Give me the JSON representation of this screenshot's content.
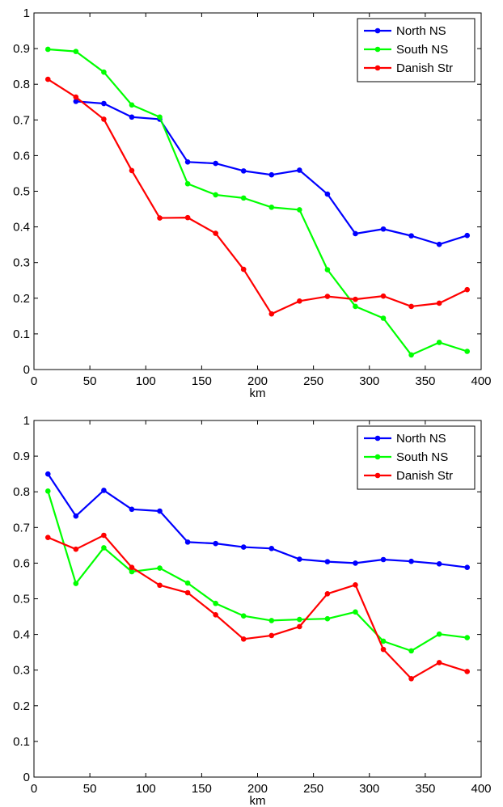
{
  "chart_data": [
    {
      "type": "line",
      "xlabel": "km",
      "ylabel": "",
      "xlim": [
        0,
        400
      ],
      "ylim": [
        0,
        1
      ],
      "xticks": [
        0,
        50,
        100,
        150,
        200,
        250,
        300,
        350,
        400
      ],
      "yticks": [
        0,
        0.1,
        0.2,
        0.3,
        0.4,
        0.5,
        0.6,
        0.7,
        0.8,
        0.9,
        1
      ],
      "ytick_labels": [
        "0",
        "0.1",
        "0.2",
        "0.3",
        "0.4",
        "0.5",
        "0.6",
        "0.7",
        "0.8",
        "0.9",
        "1"
      ],
      "grid": false,
      "legend_position": "top-right",
      "series": [
        {
          "name": "North NS",
          "color": "#0000ff",
          "x": [
            37.5,
            62.5,
            87.5,
            112.5,
            137.5,
            162.5,
            187.5,
            212.5,
            237.5,
            262.5,
            287.5,
            312.5,
            337.5,
            362.5,
            387.5
          ],
          "y": [
            0.752,
            0.746,
            0.708,
            0.702,
            0.582,
            0.578,
            0.557,
            0.546,
            0.559,
            0.492,
            0.381,
            0.394,
            0.375,
            0.351,
            0.376
          ]
        },
        {
          "name": "South NS",
          "color": "#00ff00",
          "x": [
            12.5,
            37.5,
            62.5,
            87.5,
            112.5,
            137.5,
            162.5,
            187.5,
            212.5,
            237.5,
            262.5,
            287.5,
            312.5,
            337.5,
            362.5,
            387.5
          ],
          "y": [
            0.898,
            0.892,
            0.834,
            0.742,
            0.708,
            0.521,
            0.49,
            0.481,
            0.455,
            0.448,
            0.28,
            0.177,
            0.144,
            0.041,
            0.076,
            0.051
          ]
        },
        {
          "name": "Danish Str",
          "color": "#ff0000",
          "x": [
            12.5,
            37.5,
            62.5,
            87.5,
            112.5,
            137.5,
            162.5,
            187.5,
            212.5,
            237.5,
            262.5,
            287.5,
            312.5,
            337.5,
            362.5,
            387.5
          ],
          "y": [
            0.814,
            0.764,
            0.702,
            0.558,
            0.425,
            0.426,
            0.382,
            0.281,
            0.156,
            0.192,
            0.205,
            0.197,
            0.206,
            0.177,
            0.186,
            0.224
          ]
        }
      ]
    },
    {
      "type": "line",
      "xlabel": "km",
      "ylabel": "",
      "xlim": [
        0,
        400
      ],
      "ylim": [
        0,
        1
      ],
      "xticks": [
        0,
        50,
        100,
        150,
        200,
        250,
        300,
        350,
        400
      ],
      "yticks": [
        0,
        0.1,
        0.2,
        0.3,
        0.4,
        0.5,
        0.6,
        0.7,
        0.8,
        0.9,
        1
      ],
      "ytick_labels": [
        "0",
        "0.1",
        "0.2",
        "0.3",
        "0.4",
        "0.5",
        "0.6",
        "0.7",
        "0.8",
        "0.9",
        "1"
      ],
      "grid": false,
      "legend_position": "top-right",
      "series": [
        {
          "name": "North NS",
          "color": "#0000ff",
          "x": [
            12.5,
            37.5,
            62.5,
            87.5,
            112.5,
            137.5,
            162.5,
            187.5,
            212.5,
            237.5,
            262.5,
            287.5,
            312.5,
            337.5,
            362.5,
            387.5
          ],
          "y": [
            0.85,
            0.732,
            0.804,
            0.751,
            0.746,
            0.659,
            0.655,
            0.645,
            0.641,
            0.611,
            0.604,
            0.6,
            0.61,
            0.605,
            0.598,
            0.588
          ]
        },
        {
          "name": "South NS",
          "color": "#00ff00",
          "x": [
            12.5,
            37.5,
            62.5,
            87.5,
            112.5,
            137.5,
            162.5,
            187.5,
            212.5,
            237.5,
            262.5,
            287.5,
            312.5,
            337.5,
            362.5,
            387.5
          ],
          "y": [
            0.802,
            0.543,
            0.643,
            0.576,
            0.586,
            0.544,
            0.487,
            0.452,
            0.439,
            0.442,
            0.444,
            0.463,
            0.381,
            0.354,
            0.401,
            0.391
          ]
        },
        {
          "name": "Danish Str",
          "color": "#ff0000",
          "x": [
            12.5,
            37.5,
            62.5,
            87.5,
            112.5,
            137.5,
            162.5,
            187.5,
            212.5,
            237.5,
            262.5,
            287.5,
            312.5,
            337.5,
            362.5,
            387.5
          ],
          "y": [
            0.672,
            0.639,
            0.678,
            0.588,
            0.538,
            0.517,
            0.455,
            0.387,
            0.397,
            0.422,
            0.514,
            0.539,
            0.358,
            0.276,
            0.321,
            0.296
          ]
        }
      ]
    }
  ]
}
